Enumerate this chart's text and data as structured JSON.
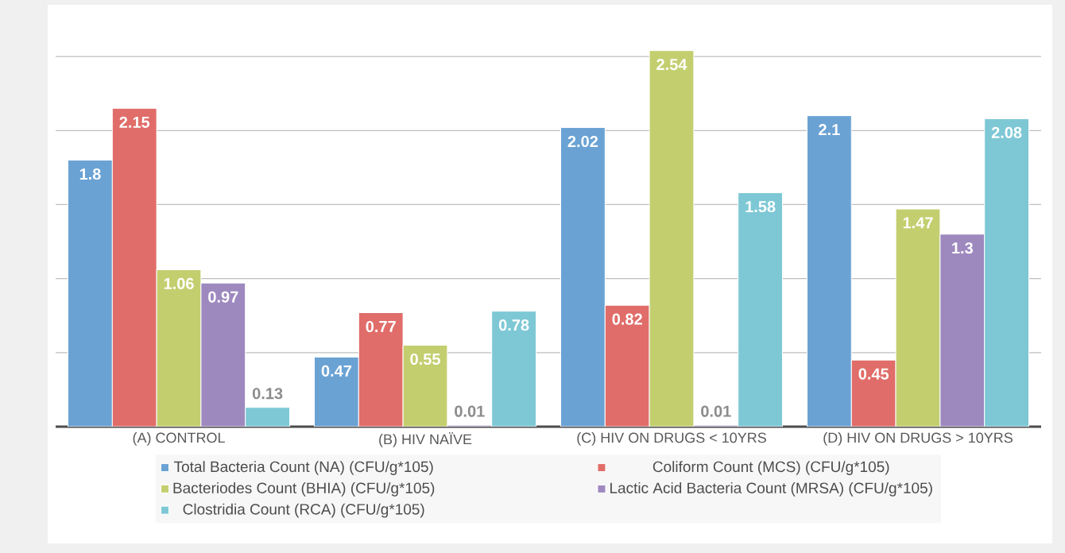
{
  "chart_data": {
    "type": "bar",
    "categories": [
      "(A) CONTROL",
      "(B) HIV NAÏVE",
      "(C) HIV ON DRUGS < 10YRS",
      "(D) HIV ON DRUGS > 10YRS"
    ],
    "series": [
      {
        "name": "Total Bacteria Count (NA) (CFU/g*105)",
        "color": "#6aa2d4",
        "values": [
          1.8,
          0.47,
          2.02,
          2.1
        ]
      },
      {
        "name": "Coliform Count (MCS) (CFU/g*105)",
        "color": "#e06d69",
        "values": [
          2.15,
          0.77,
          0.82,
          0.45
        ]
      },
      {
        "name": "Bacteriodes Count (BHIA) (CFU/g*105)",
        "color": "#c3cf6f",
        "values": [
          1.06,
          0.55,
          2.54,
          1.47
        ]
      },
      {
        "name": "Lactic Acid Bacteria Count (MRSA) (CFU/g*105)",
        "color": "#9e89bf",
        "values": [
          0.97,
          0.01,
          0.01,
          1.3
        ]
      },
      {
        "name": "Clostridia Count (RCA) (CFU/g*105)",
        "color": "#7ec8d5",
        "values": [
          0.13,
          0.78,
          1.58,
          2.08
        ]
      }
    ],
    "tick_labels": "x",
    "grid": "y",
    "legend": "bottom",
    "data_labels": true
  }
}
